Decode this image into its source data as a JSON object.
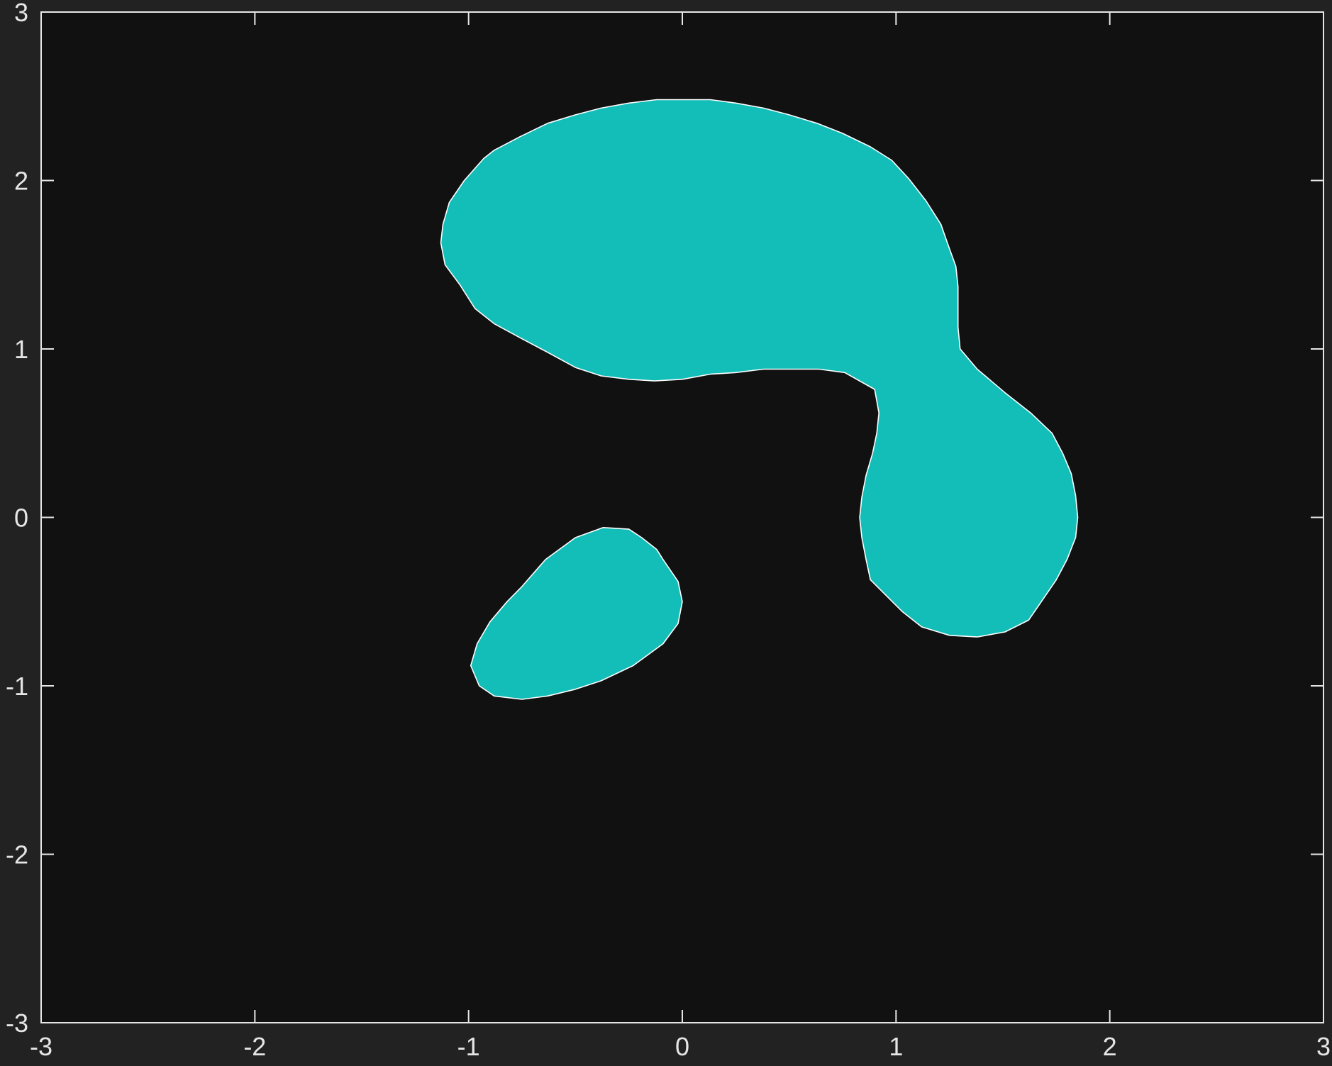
{
  "chart_data": {
    "type": "area",
    "title": "",
    "xlabel": "",
    "ylabel": "",
    "xlim": [
      -3,
      3
    ],
    "ylim": [
      -3,
      3
    ],
    "x_ticks": [
      -3,
      -2,
      -1,
      0,
      1,
      2,
      3
    ],
    "y_ticks": [
      -3,
      -2,
      -1,
      0,
      1,
      2,
      3
    ],
    "x_tick_labels": [
      "-3",
      "-2",
      "-1",
      "0",
      "1",
      "2",
      "3"
    ],
    "y_tick_labels": [
      "-3",
      "-2",
      "-1",
      "0",
      "1",
      "2",
      "3"
    ],
    "grid": false,
    "colors": {
      "figure_bg": "#222222",
      "axes_bg": "#111111",
      "axis_line": "#e6e6e6",
      "fill": "#13bdb8",
      "edge": "#ffffff"
    },
    "regions": [
      {
        "points": [
          [
            0.0,
            2.48
          ],
          [
            0.13,
            2.48
          ],
          [
            0.25,
            2.46
          ],
          [
            0.38,
            2.43
          ],
          [
            0.5,
            2.39
          ],
          [
            0.63,
            2.34
          ],
          [
            0.75,
            2.28
          ],
          [
            0.88,
            2.2
          ],
          [
            0.98,
            2.12
          ],
          [
            1.06,
            2.01
          ],
          [
            1.14,
            1.88
          ],
          [
            1.21,
            1.74
          ],
          [
            1.24,
            1.63
          ],
          [
            1.28,
            1.49
          ],
          [
            1.29,
            1.37
          ],
          [
            1.29,
            1.13
          ],
          [
            1.3,
            1.0
          ],
          [
            1.38,
            0.88
          ],
          [
            1.51,
            0.74
          ],
          [
            1.63,
            0.62
          ],
          [
            1.73,
            0.5
          ],
          [
            1.78,
            0.38
          ],
          [
            1.82,
            0.26
          ],
          [
            1.84,
            0.13
          ],
          [
            1.85,
            0.0
          ],
          [
            1.84,
            -0.12
          ],
          [
            1.8,
            -0.25
          ],
          [
            1.75,
            -0.37
          ],
          [
            1.68,
            -0.5
          ],
          [
            1.62,
            -0.61
          ],
          [
            1.51,
            -0.68
          ],
          [
            1.38,
            -0.71
          ],
          [
            1.25,
            -0.7
          ],
          [
            1.12,
            -0.65
          ],
          [
            1.03,
            -0.56
          ],
          [
            0.88,
            -0.37
          ],
          [
            0.86,
            -0.25
          ],
          [
            0.84,
            -0.12
          ],
          [
            0.83,
            0.0
          ],
          [
            0.84,
            0.12
          ],
          [
            0.86,
            0.25
          ],
          [
            0.89,
            0.38
          ],
          [
            0.91,
            0.5
          ],
          [
            0.92,
            0.62
          ],
          [
            0.9,
            0.76
          ],
          [
            0.76,
            0.86
          ],
          [
            0.64,
            0.88
          ],
          [
            0.5,
            0.88
          ],
          [
            0.38,
            0.88
          ],
          [
            0.25,
            0.86
          ],
          [
            0.13,
            0.85
          ],
          [
            0.0,
            0.82
          ],
          [
            -0.13,
            0.81
          ],
          [
            -0.25,
            0.82
          ],
          [
            -0.38,
            0.84
          ],
          [
            -0.5,
            0.89
          ],
          [
            -0.63,
            0.98
          ],
          [
            -0.75,
            1.06
          ],
          [
            -0.88,
            1.15
          ],
          [
            -0.97,
            1.24
          ],
          [
            -1.04,
            1.38
          ],
          [
            -1.11,
            1.5
          ],
          [
            -1.13,
            1.63
          ],
          [
            -1.12,
            1.74
          ],
          [
            -1.09,
            1.87
          ],
          [
            -1.02,
            2.0
          ],
          [
            -0.93,
            2.13
          ],
          [
            -0.88,
            2.18
          ],
          [
            -0.76,
            2.26
          ],
          [
            -0.63,
            2.34
          ],
          [
            -0.5,
            2.39
          ],
          [
            -0.38,
            2.43
          ],
          [
            -0.25,
            2.46
          ],
          [
            -0.12,
            2.48
          ]
        ]
      },
      {
        "points": [
          [
            -0.37,
            -0.06
          ],
          [
            -0.25,
            -0.07
          ],
          [
            -0.19,
            -0.12
          ],
          [
            -0.12,
            -0.19
          ],
          [
            -0.09,
            -0.25
          ],
          [
            -0.02,
            -0.38
          ],
          [
            0.0,
            -0.5
          ],
          [
            -0.02,
            -0.63
          ],
          [
            -0.09,
            -0.75
          ],
          [
            -0.23,
            -0.88
          ],
          [
            -0.38,
            -0.97
          ],
          [
            -0.5,
            -1.02
          ],
          [
            -0.63,
            -1.06
          ],
          [
            -0.75,
            -1.08
          ],
          [
            -0.88,
            -1.06
          ],
          [
            -0.95,
            -1.0
          ],
          [
            -0.99,
            -0.88
          ],
          [
            -0.96,
            -0.75
          ],
          [
            -0.9,
            -0.62
          ],
          [
            -0.82,
            -0.5
          ],
          [
            -0.75,
            -0.41
          ],
          [
            -0.64,
            -0.25
          ],
          [
            -0.5,
            -0.12
          ]
        ]
      }
    ]
  }
}
